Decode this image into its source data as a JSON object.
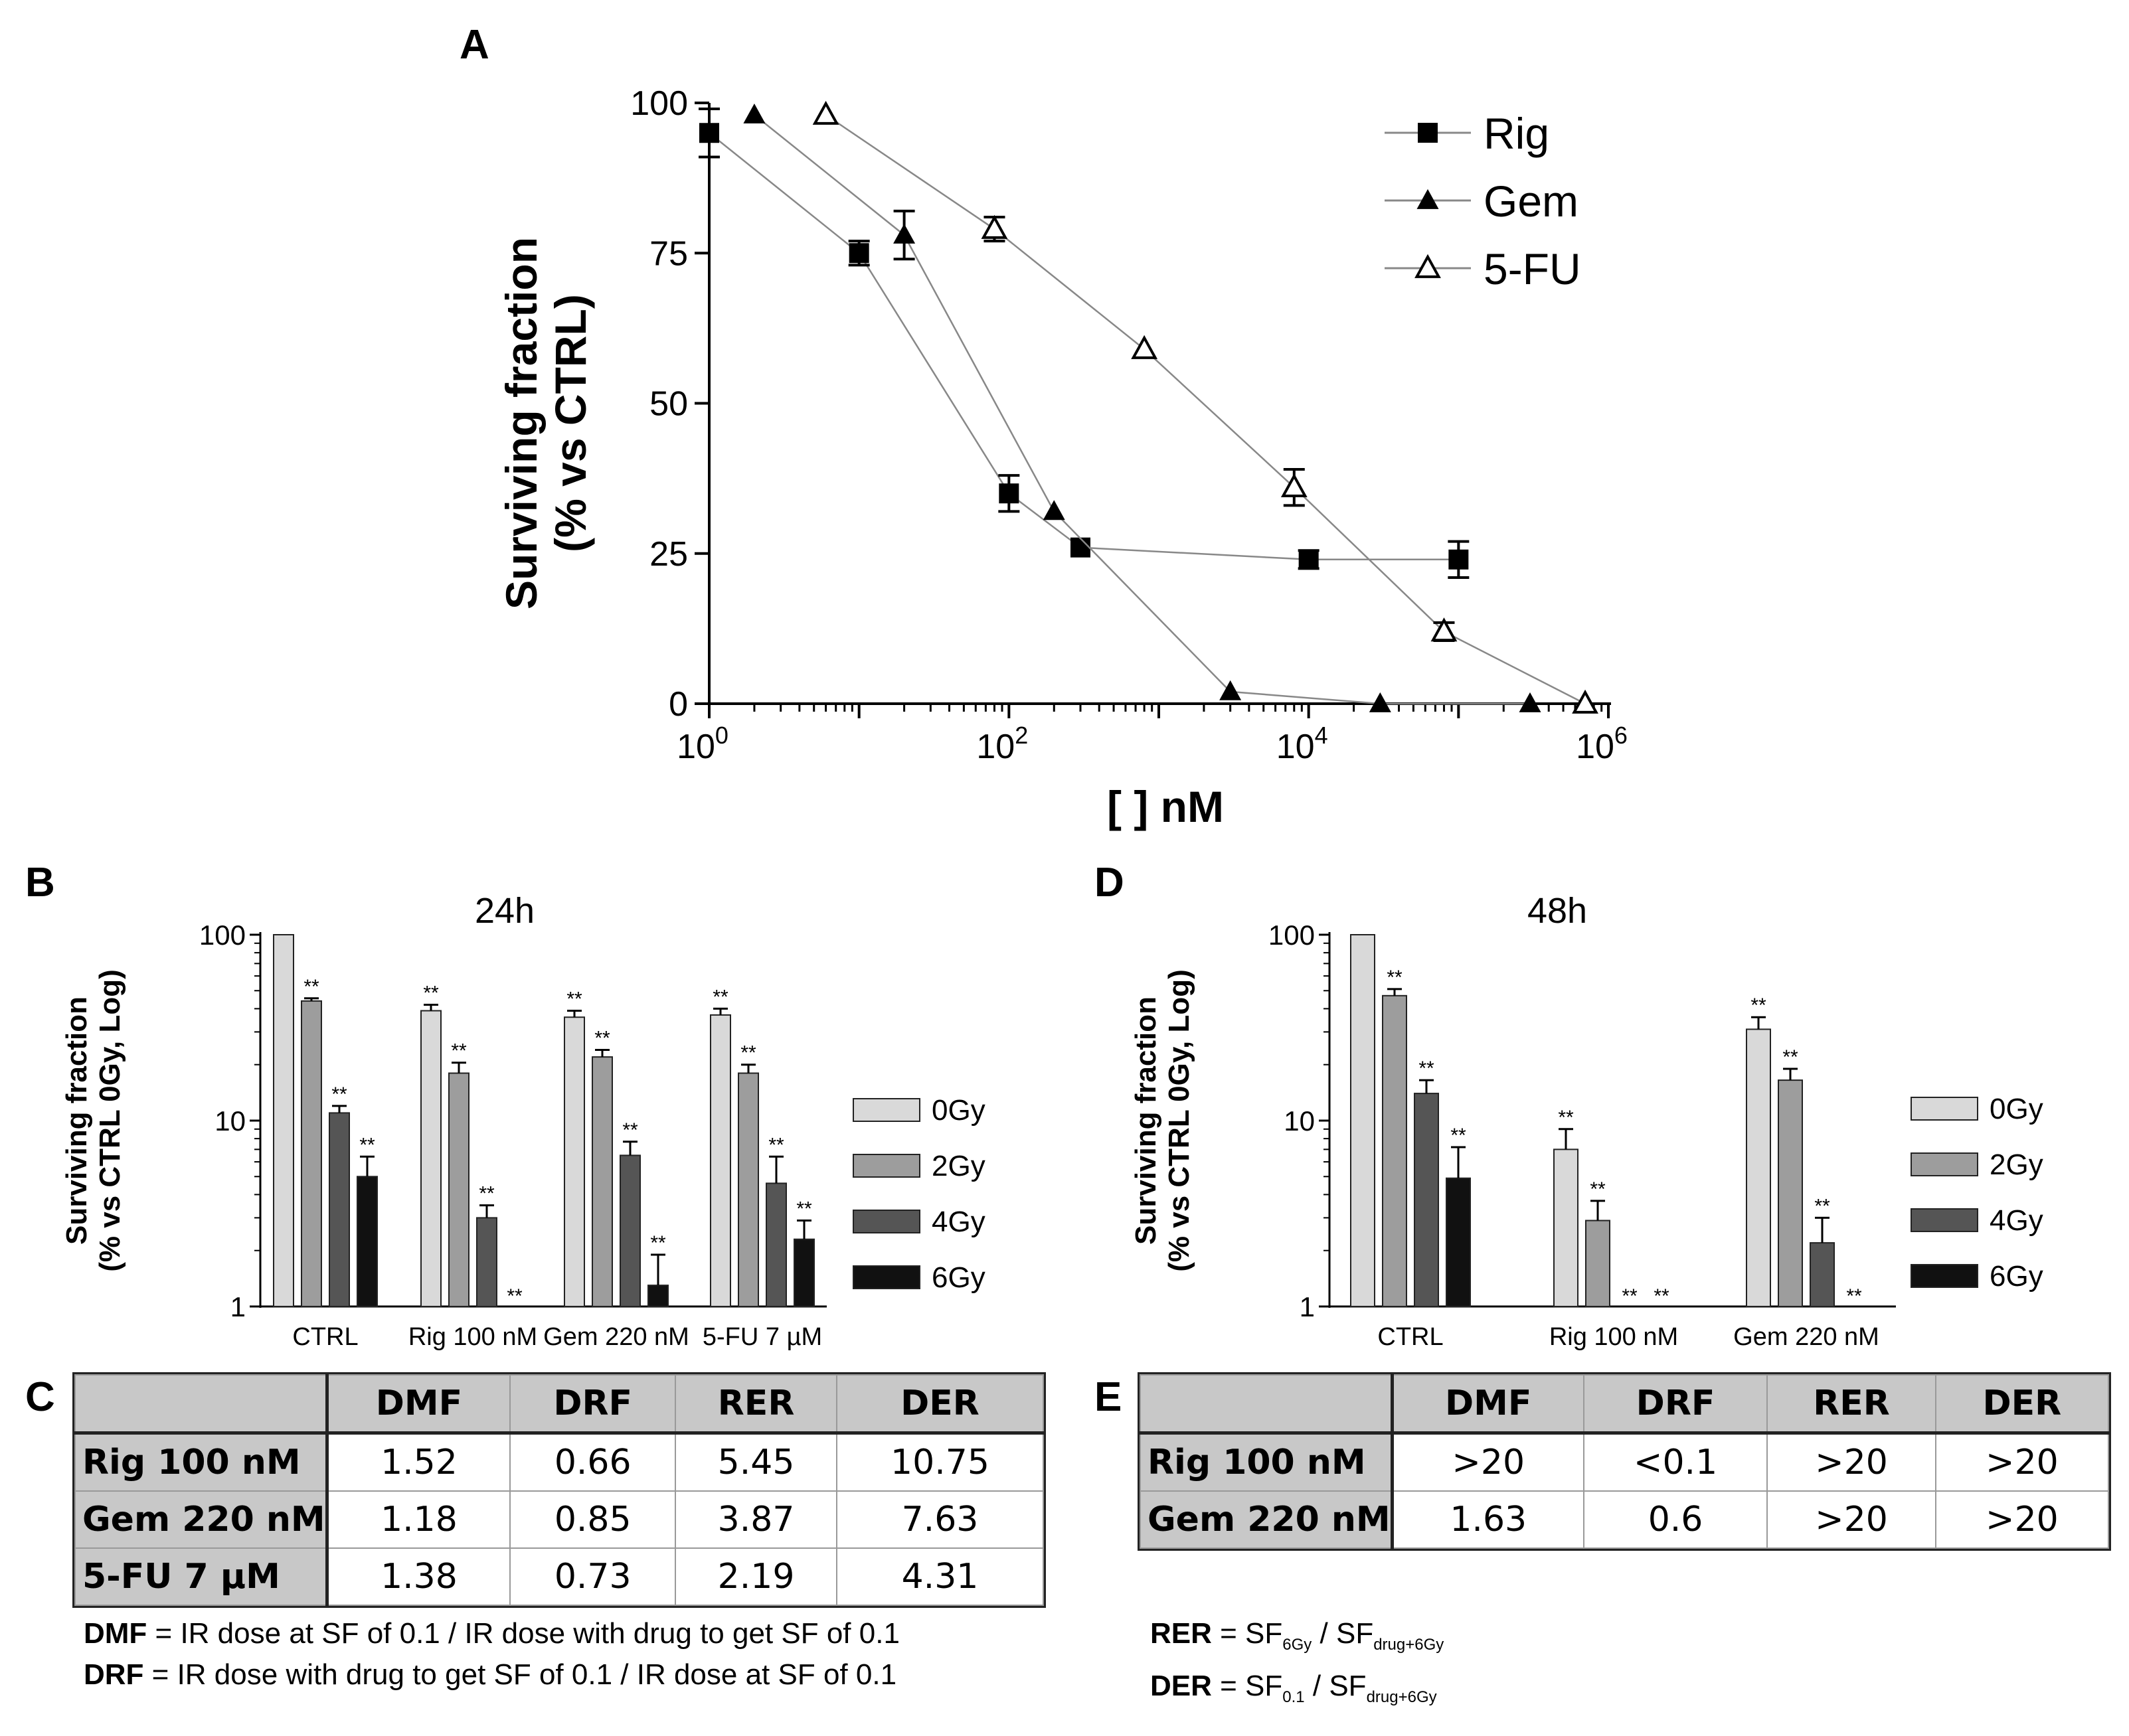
{
  "panel_labels": {
    "A": "A",
    "B": "B",
    "C": "C",
    "D": "D",
    "E": "E"
  },
  "colors": {
    "g0": "#d9d9d9",
    "g2": "#9d9d9d",
    "g4": "#555555",
    "g6": "#111111",
    "line": "#888888"
  },
  "chart_data": [
    {
      "id": "A",
      "type": "line",
      "title": "",
      "xlabel": "[ ] nM",
      "ylabel_lines": [
        "Surviving fraction",
        "(% vs CTRL)"
      ],
      "xscale": "log",
      "xlim": [
        1,
        1000000
      ],
      "ylim": [
        0,
        100
      ],
      "yticks": [
        0,
        25,
        50,
        75,
        100
      ],
      "xtick_exponents": [
        0,
        2,
        4,
        6
      ],
      "xtick_base": "10",
      "legend_position": "top-right",
      "series": [
        {
          "name": "Rig",
          "marker": "square",
          "x": [
            1,
            10,
            100,
            300,
            10000,
            100000
          ],
          "y": [
            95,
            75,
            35,
            26,
            24,
            24
          ],
          "err": [
            4,
            2,
            3,
            0,
            1.5,
            3
          ]
        },
        {
          "name": "Gem",
          "marker": "triangle",
          "x": [
            2,
            20,
            200,
            3000,
            30000,
            300000
          ],
          "y": [
            98,
            78,
            32,
            2,
            0,
            0
          ],
          "err": [
            0,
            4,
            0,
            0,
            0,
            0
          ]
        },
        {
          "name": "5-FU",
          "marker": "open-triangle",
          "x": [
            6,
            80,
            800,
            8000,
            80000,
            700000
          ],
          "y": [
            98,
            79,
            59,
            36,
            12,
            0
          ],
          "err": [
            0,
            2,
            0,
            3,
            1.5,
            0
          ]
        }
      ]
    },
    {
      "id": "B",
      "type": "bar",
      "title": "24h",
      "ylabel_lines": [
        "Surviving fraction",
        "(% vs CTRL 0Gy, Log)"
      ],
      "yscale": "log",
      "ylim": [
        1,
        100
      ],
      "yticks": [
        "1",
        "10",
        "100"
      ],
      "categories": [
        "CTRL",
        "Rig 100 nM",
        "Gem 220 nM",
        "5-FU 7 µM"
      ],
      "sig_label": "**",
      "legend_position": "right",
      "series": [
        {
          "name": "0Gy",
          "values": [
            100,
            39,
            36,
            37
          ],
          "err": [
            0,
            3,
            3,
            3
          ],
          "sig": [
            false,
            true,
            true,
            true
          ]
        },
        {
          "name": "2Gy",
          "values": [
            44,
            18,
            22,
            18
          ],
          "err": [
            1.5,
            2.5,
            2,
            2
          ],
          "sig": [
            true,
            true,
            true,
            true
          ]
        },
        {
          "name": "4Gy",
          "values": [
            11,
            3,
            6.5,
            4.6
          ],
          "err": [
            1,
            0.5,
            1.2,
            1.8
          ],
          "sig": [
            true,
            true,
            true,
            true
          ]
        },
        {
          "name": "6Gy",
          "values": [
            5,
            0,
            1.3,
            2.3
          ],
          "err": [
            1.4,
            0,
            0.6,
            0.6
          ],
          "sig": [
            true,
            true,
            true,
            true
          ]
        }
      ]
    },
    {
      "id": "D",
      "type": "bar",
      "title": "48h",
      "ylabel_lines": [
        "Surviving fraction",
        "(% vs CTRL 0Gy, Log)"
      ],
      "yscale": "log",
      "ylim": [
        1,
        100
      ],
      "yticks": [
        "1",
        "10",
        "100"
      ],
      "categories": [
        "CTRL",
        "Rig 100 nM",
        "Gem 220 nM"
      ],
      "sig_label": "**",
      "legend_position": "right",
      "series": [
        {
          "name": "0Gy",
          "values": [
            100,
            7,
            31
          ],
          "err": [
            0,
            2,
            5
          ],
          "sig": [
            false,
            true,
            true
          ]
        },
        {
          "name": "2Gy",
          "values": [
            47,
            2.9,
            16.5
          ],
          "err": [
            4,
            0.8,
            2.5
          ],
          "sig": [
            true,
            true,
            true
          ]
        },
        {
          "name": "4Gy",
          "values": [
            14,
            0,
            2.2
          ],
          "err": [
            2.5,
            0,
            0.8
          ],
          "sig": [
            true,
            true,
            true
          ]
        },
        {
          "name": "6Gy",
          "values": [
            4.9,
            0,
            0
          ],
          "err": [
            2.3,
            0,
            0
          ],
          "sig": [
            true,
            true,
            true
          ]
        }
      ]
    },
    {
      "id": "C",
      "type": "table",
      "columns": [
        "DMF",
        "DRF",
        "RER",
        "DER"
      ],
      "rows": [
        {
          "label": "Rig 100 nM",
          "cells": [
            "1.52",
            "0.66",
            "5.45",
            "10.75"
          ]
        },
        {
          "label": "Gem 220 nM",
          "cells": [
            "1.18",
            "0.85",
            "3.87",
            "7.63"
          ]
        },
        {
          "label": "5-FU 7 µM",
          "cells": [
            "1.38",
            "0.73",
            "2.19",
            "4.31"
          ]
        }
      ]
    },
    {
      "id": "E",
      "type": "table",
      "columns": [
        "DMF",
        "DRF",
        "RER",
        "DER"
      ],
      "rows": [
        {
          "label": "Rig 100 nM",
          "cells": [
            ">20",
            "<0.1",
            ">20",
            ">20"
          ]
        },
        {
          "label": "Gem 220 nM",
          "cells": [
            "1.63",
            "0.6",
            ">20",
            ">20"
          ]
        }
      ]
    }
  ],
  "notes_left": {
    "dmf_key": "DMF",
    "dmf_text": " = IR dose at SF of 0.1 / IR dose with drug to get SF of 0.1",
    "drf_key": "DRF",
    "drf_text": " = IR dose with drug to get SF of 0.1 / IR dose at SF of 0.1"
  },
  "notes_right": {
    "rer_key": "RER",
    "rer_eq": " = SF",
    "rer_sub1": "6Gy",
    "rer_slash": " / SF",
    "rer_sub2": "drug+6Gy",
    "der_key": "DER",
    "der_eq": " = SF",
    "der_sub1": "0.1",
    "der_slash": " / SF",
    "der_sub2": "drug+6Gy"
  }
}
